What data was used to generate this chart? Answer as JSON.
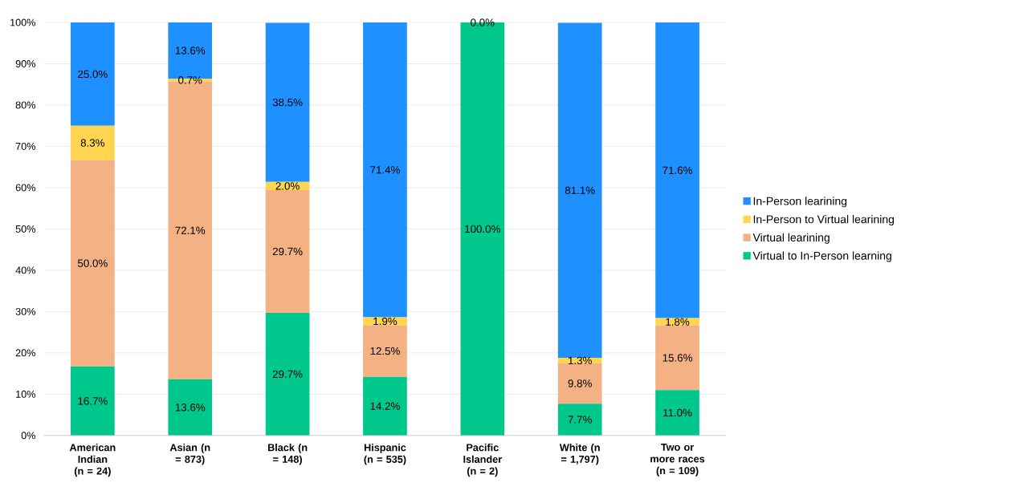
{
  "chart_data": {
    "type": "bar",
    "stacked": true,
    "categories": [
      "American Indian (n = 24)",
      "Asian (n = 873)",
      "Black (n = 148)",
      "Hispanic (n = 535)",
      "Pacific Islander (n = 2)",
      "White (n = 1,797)",
      "Two or more races (n = 109)"
    ],
    "series": [
      {
        "name": "Virtual to In-Person learning",
        "color": "#00c88c",
        "values": [
          16.7,
          13.6,
          29.7,
          14.2,
          100.0,
          7.7,
          11.0
        ],
        "value_labels": [
          "16.7%",
          "13.6%",
          "29.7%",
          "14.2%",
          "100.0%",
          "7.7%",
          "11.0%"
        ]
      },
      {
        "name": "Virtual learining",
        "color": "#f4b183",
        "values": [
          50.0,
          72.1,
          29.7,
          12.5,
          0,
          9.8,
          15.6
        ],
        "value_labels": [
          "50.0%",
          "72.1%",
          "29.7%",
          "12.5%",
          null,
          "9.8%",
          "15.6%"
        ]
      },
      {
        "name": "In-Person to Virtual learining",
        "color": "#ffd54f",
        "values": [
          8.3,
          0.7,
          2.0,
          1.9,
          0,
          1.3,
          1.8
        ],
        "value_labels": [
          "8.3%",
          "0.7%",
          "2.0%",
          "1.9%",
          null,
          "1.3%",
          "1.8%"
        ]
      },
      {
        "name": "In-Person learining",
        "color": "#1e90ff",
        "values": [
          25.0,
          13.6,
          38.5,
          71.4,
          0.0,
          81.1,
          71.6
        ],
        "value_labels": [
          "25.0%",
          "13.6%",
          "38.5%",
          "71.4%",
          "0.0%",
          "81.1%",
          "71.6%"
        ]
      }
    ],
    "ylim": [
      0,
      100
    ],
    "yticks": [
      {
        "value": 0,
        "label": "0%"
      },
      {
        "value": 10,
        "label": "10%"
      },
      {
        "value": 20,
        "label": "20%"
      },
      {
        "value": 30,
        "label": "30%"
      },
      {
        "value": 40,
        "label": "40%"
      },
      {
        "value": 50,
        "label": "50%"
      },
      {
        "value": 60,
        "label": "60%"
      },
      {
        "value": 70,
        "label": "70%"
      },
      {
        "value": 80,
        "label": "80%"
      },
      {
        "value": 90,
        "label": "90%"
      },
      {
        "value": 100,
        "label": "100%"
      }
    ],
    "grid": "y",
    "legend": "right"
  }
}
